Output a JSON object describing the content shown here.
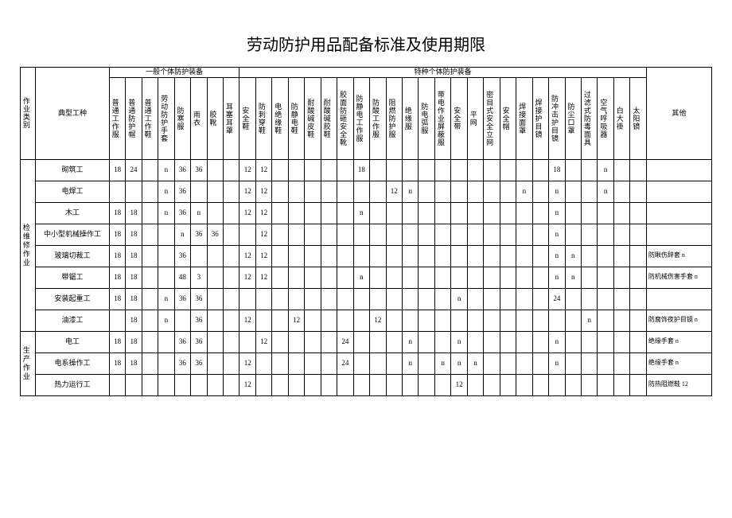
{
  "title": "劳动防护用品配备标准及使用期限",
  "headers": {
    "cat": "作业类别",
    "job": "典型工种",
    "group1": "一般个体防护装备",
    "group2": "特种个体防护装备",
    "other": "其他",
    "cols": [
      "普通工作服",
      "普通防护帽",
      "普通工作鞋",
      "劳动防护手套",
      "防寒服",
      "雨衣",
      "胶靴",
      "耳塞耳罩",
      "安全鞋",
      "防刺穿鞋",
      "电绝缘鞋",
      "防静电鞋",
      "耐酸碱皮鞋",
      "耐酸碱胶鞋",
      "胶面防砸安全靴",
      "防静电工作服",
      "防酸工作服",
      "阻燃防护服",
      "绝缘服",
      "防电弧服",
      "带电作业屏蔽服",
      "安全带",
      "平网",
      "密目式安全立网",
      "安全帽",
      "焊接面罩",
      "焊接护目镜",
      "防冲击护目镜",
      "防尘口罩",
      "过滤式防毒面具",
      "空气呼吸器",
      "白大褂",
      "太阳镜"
    ]
  },
  "cats": [
    {
      "name": "检维修作业",
      "span": 8,
      "rows": [
        {
          "job": "砌筑工",
          "d": [
            "18",
            "24",
            "",
            "n",
            "36",
            "36",
            "",
            "",
            "12",
            "12",
            "",
            "",
            "",
            "",
            "",
            "18",
            "",
            "",
            "",
            "",
            "",
            "",
            "",
            "",
            "",
            "",
            "",
            "18",
            "",
            "",
            "n",
            "",
            ""
          ],
          "other": ""
        },
        {
          "job": "电焊工",
          "d": [
            "",
            "",
            "",
            "n",
            "36",
            "",
            "",
            "",
            "12",
            "12",
            "",
            "",
            "",
            "",
            "",
            "",
            "",
            "12",
            "n",
            "",
            "",
            "",
            "",
            "",
            "",
            "n",
            "",
            "n",
            "",
            "",
            "n",
            "",
            ""
          ],
          "other": ""
        },
        {
          "job": "木工",
          "d": [
            "18",
            "18",
            "",
            "n",
            "36",
            "n",
            "",
            "",
            "12",
            "12",
            "",
            "",
            "",
            "",
            "",
            "n",
            "",
            "",
            "",
            "",
            "",
            "",
            "",
            "",
            "",
            "",
            "",
            "n",
            "",
            "",
            "",
            "",
            ""
          ],
          "other": ""
        },
        {
          "job": "中小型机械操作工",
          "d": [
            "18",
            "18",
            "",
            "",
            "n",
            "36",
            "36",
            "",
            "",
            "12",
            "",
            "",
            "",
            "",
            "",
            "",
            "",
            "",
            "",
            "",
            "",
            "",
            "",
            "",
            "",
            "",
            "",
            "n",
            "",
            "",
            "",
            "",
            ""
          ],
          "other": ""
        },
        {
          "job": "玻璃切裁工",
          "d": [
            "18",
            "18",
            "",
            "",
            "36",
            "",
            "",
            "",
            "12",
            "12",
            "",
            "",
            "",
            "",
            "",
            "",
            "",
            "",
            "",
            "",
            "",
            "",
            "",
            "",
            "",
            "",
            "",
            "n",
            "n",
            "",
            "",
            "",
            ""
          ],
          "other": "防瞅伤辞套 n"
        },
        {
          "job": "带锯工",
          "d": [
            "18",
            "18",
            "",
            "",
            "48",
            "3",
            "",
            "",
            "12",
            "12",
            "",
            "",
            "",
            "",
            "",
            "n",
            "",
            "",
            "",
            "",
            "",
            "",
            "",
            "",
            "",
            "",
            "",
            "n",
            "n",
            "",
            "",
            "",
            ""
          ],
          "other": "防机械伤害手套 n"
        },
        {
          "job": "安装起重工",
          "d": [
            "18",
            "18",
            "",
            "n",
            "36",
            "36",
            "",
            "",
            "",
            "",
            "",
            "",
            "",
            "",
            "",
            "",
            "",
            "",
            "",
            "",
            "",
            "n",
            "",
            "",
            "",
            "",
            "",
            "24",
            "",
            "",
            "",
            "",
            ""
          ],
          "other": ""
        },
        {
          "job": "油漆工",
          "d": [
            "",
            "18",
            "",
            "n",
            "",
            "36",
            "",
            "",
            "12",
            "",
            "",
            "12",
            "",
            "",
            "",
            "",
            "12",
            "",
            "",
            "",
            "",
            "",
            "",
            "",
            "",
            "",
            "",
            "",
            "",
            "n",
            "",
            "",
            ""
          ],
          "other": "防腐饰夜护目镜 n"
        }
      ]
    },
    {
      "name": "生产作业",
      "span": 3,
      "rows": [
        {
          "job": "电工",
          "d": [
            "18",
            "18",
            "",
            "",
            "36",
            "36",
            "",
            "",
            "",
            "12",
            "",
            "",
            "",
            "",
            "24",
            "",
            "",
            "",
            "n",
            "",
            "",
            "n",
            "",
            "",
            "",
            "",
            "",
            "n",
            "",
            "",
            "",
            "",
            ""
          ],
          "other": "绝缘手套 n"
        },
        {
          "job": "电系操作工",
          "d": [
            "18",
            "18",
            "",
            "",
            "36",
            "36",
            "",
            "",
            "12",
            "",
            "",
            "",
            "",
            "",
            "24",
            "",
            "",
            "",
            "n",
            "",
            "n",
            "n",
            "n",
            "",
            "",
            "",
            "",
            "n",
            "",
            "",
            "",
            "",
            ""
          ],
          "other": "绝缘手套 n"
        },
        {
          "job": "热力运行工",
          "d": [
            "",
            "",
            "",
            "",
            "",
            "",
            "",
            "",
            "12",
            "",
            "",
            "",
            "",
            "",
            "",
            "",
            "",
            "",
            "",
            "",
            "",
            "12",
            "",
            "",
            "",
            "",
            "",
            "",
            "",
            "",
            "",
            "",
            ""
          ],
          "other": "防热阻燃鞋 12"
        }
      ]
    }
  ]
}
